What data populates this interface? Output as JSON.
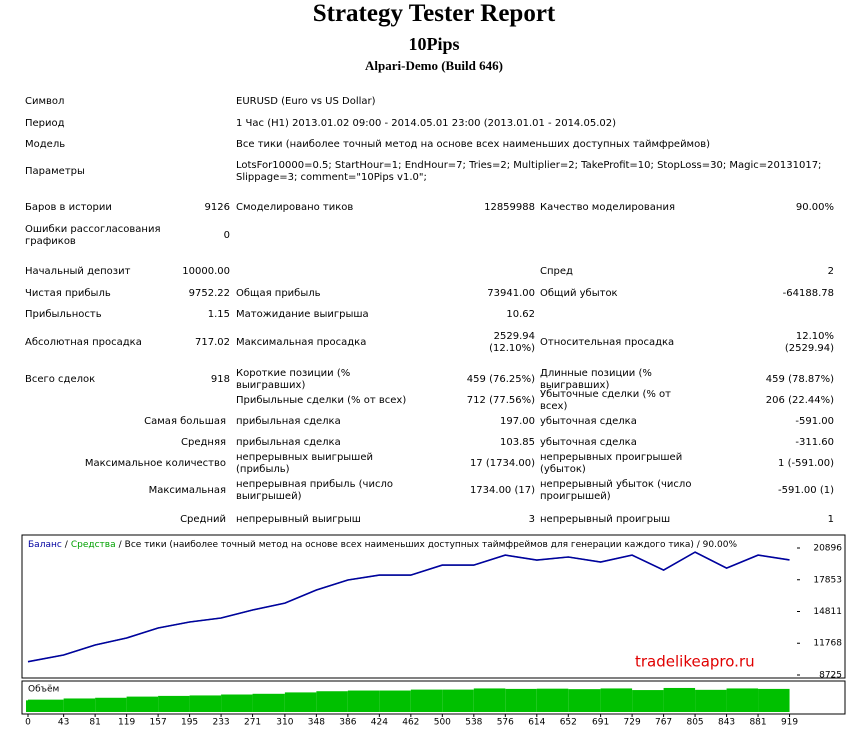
{
  "header": {
    "title": "Strategy Tester Report",
    "subtitle": "10Pips",
    "server": "Alpari-Demo (Build 646)"
  },
  "table": {
    "rows": [
      [
        "Символ",
        "EURUSD (Euro vs US Dollar)"
      ],
      [
        "Период",
        "1 Час (H1) 2013.01.02 09:00 - 2014.05.01 23:00 (2013.01.01 - 2014.05.02)"
      ],
      [
        "Модель",
        "Все тики (наиболее точный метод на основе всех наименьших доступных таймфреймов)"
      ],
      [
        "Параметры",
        "LotsFor10000=0.5; StartHour=1; EndHour=7; Tries=2; Multiplier=2; TakeProfit=10; StopLoss=30; Magic=20131017; Slippage=3; comment=\"10Pips v1.0\";"
      ],
      [
        "Баров в истории",
        "9126",
        "Смоделировано тиков",
        "12859988",
        "Качество моделирования",
        "90.00%"
      ],
      [
        "Ошибки рассогласования графиков",
        "0"
      ],
      [
        "Начальный депозит",
        "10000.00",
        "Спред",
        "2"
      ],
      [
        "Чистая прибыль",
        "9752.22",
        "Общая прибыль",
        "73941.00",
        "Общий убыток",
        "-64188.78"
      ],
      [
        "Прибыльность",
        "1.15",
        "Матожидание выигрыша",
        "10.62"
      ],
      [
        "Абсолютная просадка",
        "717.02",
        "Максимальная просадка",
        [
          "2529.94",
          "(12.10%)"
        ],
        "Относительная просадка",
        [
          "12.10%",
          "(2529.94)"
        ]
      ],
      [
        "Всего сделок",
        "918",
        "Короткие позиции (% выигравших)",
        "459 (76.25%)",
        "Длинные позиции (% выигравших)",
        "459 (78.87%)"
      ],
      [
        "Прибыльные сделки (% от всех)",
        "712 (77.56%)",
        "Убыточные сделки (% от всех)",
        "206 (22.44%)"
      ],
      [
        "Самая большая",
        "прибыльная сделка",
        "197.00",
        "убыточная сделка",
        "-591.00"
      ],
      [
        "Средняя",
        "прибыльная сделка",
        "103.85",
        "убыточная сделка",
        "-311.60"
      ],
      [
        "Максимальное количество",
        "непрерывных выигрышей (прибыль)",
        "17 (1734.00)",
        "непрерывных проигрышей (убыток)",
        "1 (-591.00)"
      ],
      [
        "Максимальная",
        "непрерывная прибыль (число выигрышей)",
        "1734.00 (17)",
        "непрерывный убыток (число проигрышей)",
        "-591.00 (1)"
      ],
      [
        "Средний",
        "непрерывный выигрыш",
        "3",
        "непрерывный проигрыш",
        "1"
      ]
    ]
  },
  "chart_data": {
    "type": "line",
    "legend_separator": "/",
    "legend_note": "Все тики (наиболее точный метод на основе всех наименьших доступных таймфреймов для генерации каждого тика) / 90.00%",
    "watermark": "tradelikeapro.ru",
    "x": [
      0,
      43,
      81,
      119,
      157,
      195,
      233,
      271,
      310,
      348,
      386,
      424,
      462,
      500,
      538,
      576,
      614,
      652,
      691,
      729,
      767,
      805,
      843,
      881,
      919
    ],
    "series": [
      {
        "name": "Баланс",
        "color": "#0000a0",
        "values": [
          10000,
          10640,
          11600,
          12270,
          13230,
          13800,
          14190,
          14950,
          15620,
          16870,
          17830,
          18300,
          18300,
          19260,
          19260,
          20220,
          19740,
          20030,
          19550,
          20220,
          18780,
          20500,
          18970,
          20220,
          19752
        ]
      },
      {
        "name": "Средства",
        "color": "#00a000",
        "values": [
          10000,
          10640,
          11600,
          12270,
          13230,
          13800,
          14190,
          14950,
          15620,
          16870,
          17830,
          18300,
          18300,
          19260,
          19260,
          20220,
          19740,
          20030,
          19550,
          20220,
          18780,
          20500,
          18970,
          20220,
          19752
        ]
      }
    ],
    "volume": {
      "name": "Объём",
      "color": "#00c000",
      "values": [
        0.5,
        0.53,
        0.58,
        0.61,
        0.66,
        0.69,
        0.71,
        0.75,
        0.78,
        0.84,
        0.89,
        0.92,
        0.92,
        0.96,
        0.96,
        1.01,
        0.99,
        1.0,
        0.98,
        1.01,
        0.94,
        1.03,
        0.95,
        1.01,
        0.99
      ],
      "ylim": [
        0,
        1.2
      ]
    },
    "xlim": [
      0,
      928
    ],
    "xticks": [
      0,
      43,
      81,
      119,
      157,
      195,
      233,
      271,
      310,
      348,
      386,
      424,
      462,
      500,
      538,
      576,
      614,
      652,
      691,
      729,
      767,
      805,
      843,
      881,
      919
    ],
    "ylim": [
      8725,
      20896
    ],
    "yticks": [
      8725,
      11768,
      14811,
      17853,
      20896
    ]
  }
}
